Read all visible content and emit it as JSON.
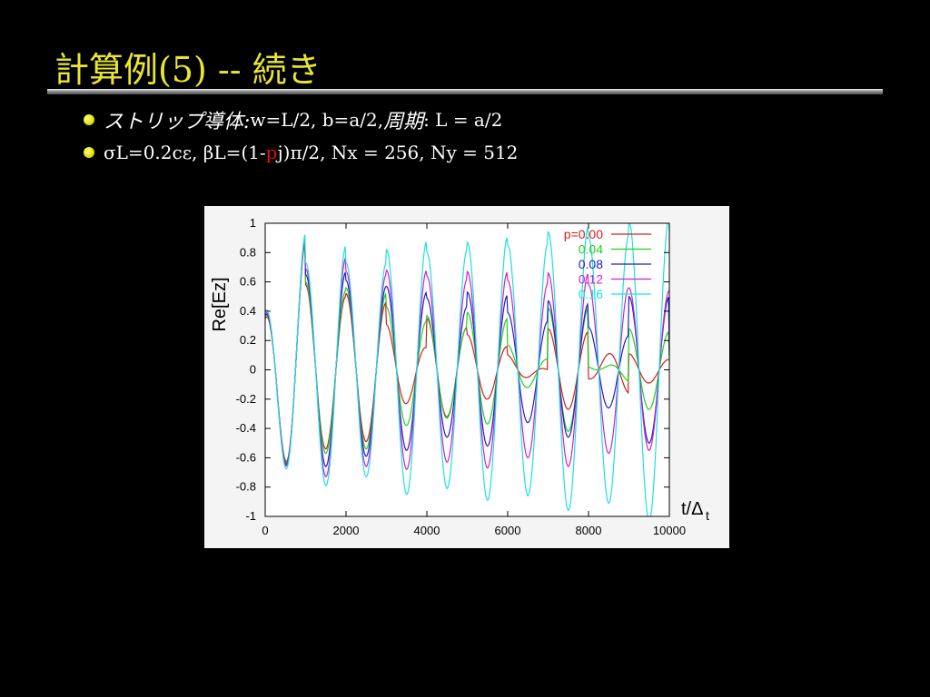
{
  "slide": {
    "title": "計算例(5)  --  続き",
    "bullets": [
      {
        "parts": [
          "ストリップ導体:",
          " w=L/2,  b=a/2,  ",
          "周期",
          ": L = a/2"
        ]
      },
      {
        "parts": [
          "σL=0.2cε, βL=(1-",
          "p",
          "j)π/2,   Nx = 256,  Ny = 512"
        ]
      }
    ]
  },
  "chart_data": {
    "type": "line",
    "ylabel": "Re[Ez]",
    "xlabel": "t/Δt",
    "xlabel_main": "t/Δ",
    "xlabel_sub": "t",
    "xlim": [
      0,
      10000
    ],
    "ylim": [
      -1,
      1
    ],
    "xticks": [
      "0",
      "2000",
      "4000",
      "6000",
      "8000",
      "10000"
    ],
    "yticks": [
      "1",
      "0.8",
      "0.6",
      "0.4",
      "0.2",
      "0",
      "-0.2",
      "-0.4",
      "-0.6",
      "-0.8",
      "-1"
    ],
    "legend_position": "top-right",
    "legend_title_prefix": "p=",
    "period": 2000,
    "series": [
      {
        "name": "0.00",
        "legend_label": "p=0.00",
        "color": "#d02020",
        "peaks": [
          [
            0,
            0.35
          ],
          [
            500,
            -0.62
          ],
          [
            1000,
            0.58
          ],
          [
            1500,
            -0.55
          ],
          [
            2000,
            0.47
          ],
          [
            2500,
            -0.44
          ],
          [
            3000,
            0.4
          ],
          [
            3500,
            -0.35
          ],
          [
            4000,
            0.34
          ],
          [
            4500,
            -0.29
          ],
          [
            5000,
            0.27
          ],
          [
            5500,
            -0.25
          ],
          [
            6000,
            0.22
          ],
          [
            6500,
            -0.2
          ],
          [
            7000,
            0.18
          ],
          [
            7500,
            -0.17
          ],
          [
            8000,
            0.15
          ],
          [
            8500,
            -0.14
          ],
          [
            9000,
            0.13
          ],
          [
            9500,
            -0.12
          ],
          [
            10000,
            0.11
          ]
        ]
      },
      {
        "name": "0.04",
        "legend_label": "0.04",
        "color": "#20d020",
        "peaks": [
          [
            0,
            0.36
          ],
          [
            500,
            -0.63
          ],
          [
            1000,
            0.6
          ],
          [
            1500,
            -0.58
          ],
          [
            2000,
            0.53
          ],
          [
            2500,
            -0.49
          ],
          [
            3000,
            0.47
          ],
          [
            3500,
            -0.42
          ],
          [
            4000,
            0.42
          ],
          [
            4500,
            -0.37
          ],
          [
            5000,
            0.36
          ],
          [
            5500,
            -0.33
          ],
          [
            6000,
            0.31
          ],
          [
            6500,
            -0.29
          ],
          [
            7000,
            0.27
          ],
          [
            7500,
            -0.25
          ],
          [
            8000,
            0.23
          ],
          [
            8500,
            -0.22
          ],
          [
            9000,
            0.2
          ],
          [
            9500,
            -0.18
          ],
          [
            10000,
            0.17
          ]
        ]
      },
      {
        "name": "0.08",
        "legend_label": "0.08",
        "color": "#2020c0",
        "peaks": [
          [
            0,
            0.37
          ],
          [
            500,
            -0.64
          ],
          [
            1000,
            0.65
          ],
          [
            1500,
            -0.63
          ],
          [
            2000,
            0.61
          ],
          [
            2500,
            -0.58
          ],
          [
            3000,
            0.57
          ],
          [
            3500,
            -0.54
          ],
          [
            4000,
            0.53
          ],
          [
            4500,
            -0.5
          ],
          [
            5000,
            0.5
          ],
          [
            5500,
            -0.46
          ],
          [
            6000,
            0.46
          ],
          [
            6500,
            -0.42
          ],
          [
            7000,
            0.42
          ],
          [
            7500,
            -0.38
          ],
          [
            8000,
            0.38
          ],
          [
            8500,
            -0.35
          ],
          [
            9000,
            0.34
          ],
          [
            9500,
            -0.32
          ],
          [
            10000,
            0.31
          ]
        ]
      },
      {
        "name": "0.12",
        "legend_label": "0.12",
        "color": "#d020d0",
        "peaks": [
          [
            0,
            0.38
          ],
          [
            500,
            -0.65
          ],
          [
            1000,
            0.69
          ],
          [
            1500,
            -0.68
          ],
          [
            2000,
            0.68
          ],
          [
            2500,
            -0.67
          ],
          [
            3000,
            0.67
          ],
          [
            3500,
            -0.66
          ],
          [
            4000,
            0.66
          ],
          [
            4500,
            -0.65
          ],
          [
            5000,
            0.64
          ],
          [
            5500,
            -0.63
          ],
          [
            6000,
            0.63
          ],
          [
            6500,
            -0.62
          ],
          [
            7000,
            0.61
          ],
          [
            7500,
            -0.6
          ],
          [
            8000,
            0.59
          ],
          [
            8500,
            -0.58
          ],
          [
            9000,
            0.57
          ],
          [
            9500,
            -0.56
          ],
          [
            10000,
            0.55
          ]
        ]
      },
      {
        "name": "0.16",
        "legend_label": "0.16",
        "color": "#20e0e0",
        "peaks": [
          [
            0,
            0.4
          ],
          [
            500,
            -0.67
          ],
          [
            1000,
            0.73
          ],
          [
            1500,
            -0.73
          ],
          [
            2000,
            0.76
          ],
          [
            2500,
            -0.77
          ],
          [
            3000,
            0.79
          ],
          [
            3500,
            -0.8
          ],
          [
            4000,
            0.82
          ],
          [
            4500,
            -0.83
          ],
          [
            5000,
            0.85
          ],
          [
            5500,
            -0.86
          ],
          [
            6000,
            0.88
          ],
          [
            6500,
            -0.89
          ],
          [
            7000,
            0.91
          ],
          [
            7500,
            -0.93
          ],
          [
            8000,
            0.94
          ],
          [
            8500,
            -0.96
          ],
          [
            9000,
            0.97
          ],
          [
            9500,
            -0.98
          ],
          [
            10000,
            0.99
          ]
        ]
      }
    ]
  }
}
